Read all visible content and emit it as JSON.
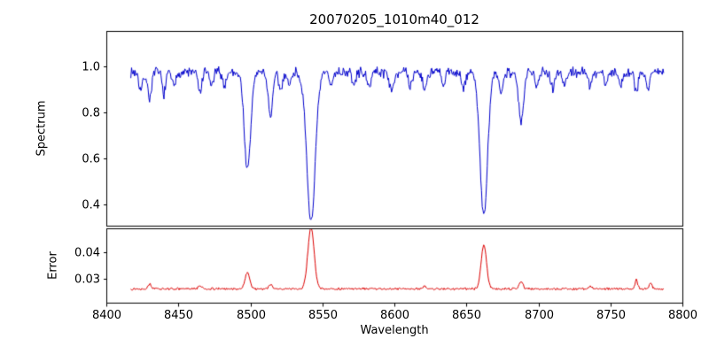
{
  "figure": {
    "background": "#ffffff",
    "frame_color": "#000000"
  },
  "chart_data": [
    {
      "type": "line",
      "panel": "spectrum",
      "title": "20070205_1010m40_012",
      "ylabel": "Spectrum",
      "xlabel": "",
      "color": "#0000cc",
      "xlim": [
        8400,
        8800
      ],
      "ylim": [
        0.3077,
        1.1538
      ],
      "yticks": [
        {
          "label": "1.0",
          "value": 1.0
        },
        {
          "label": "0.8",
          "value": 0.8
        },
        {
          "label": "0.6",
          "value": 0.6
        },
        {
          "label": "0.4",
          "value": 0.4
        }
      ],
      "x_range": [
        8417,
        8787
      ],
      "sample_step": 0.5,
      "noise_seed": 7,
      "baseline": 0.975,
      "noise_amplitude": 0.028,
      "absorption_lines": [
        {
          "center": 8424,
          "depth": 0.08,
          "width": 1.3
        },
        {
          "center": 8430,
          "depth": 0.11,
          "width": 1.4
        },
        {
          "center": 8440,
          "depth": 0.09,
          "width": 1.3
        },
        {
          "center": 8447,
          "depth": 0.07,
          "width": 1.2
        },
        {
          "center": 8465,
          "depth": 0.09,
          "width": 1.3
        },
        {
          "center": 8473,
          "depth": 0.06,
          "width": 1.2
        },
        {
          "center": 8482,
          "depth": 0.06,
          "width": 1.2
        },
        {
          "center": 8498.0,
          "depth": 0.43,
          "width": 2.2
        },
        {
          "center": 8514,
          "depth": 0.19,
          "width": 1.6
        },
        {
          "center": 8521,
          "depth": 0.08,
          "width": 1.3
        },
        {
          "center": 8527,
          "depth": 0.06,
          "width": 1.2
        },
        {
          "center": 8542.1,
          "depth": 0.645,
          "width": 3.0
        },
        {
          "center": 8556,
          "depth": 0.06,
          "width": 1.2
        },
        {
          "center": 8572,
          "depth": 0.06,
          "width": 1.2
        },
        {
          "center": 8582,
          "depth": 0.07,
          "width": 1.3
        },
        {
          "center": 8598,
          "depth": 0.09,
          "width": 1.3
        },
        {
          "center": 8611,
          "depth": 0.07,
          "width": 1.2
        },
        {
          "center": 8621,
          "depth": 0.08,
          "width": 1.3
        },
        {
          "center": 8634,
          "depth": 0.06,
          "width": 1.2
        },
        {
          "center": 8648,
          "depth": 0.08,
          "width": 1.3
        },
        {
          "center": 8662.1,
          "depth": 0.63,
          "width": 2.6
        },
        {
          "center": 8674,
          "depth": 0.09,
          "width": 1.3
        },
        {
          "center": 8688,
          "depth": 0.215,
          "width": 1.8
        },
        {
          "center": 8699,
          "depth": 0.05,
          "width": 1.2
        },
        {
          "center": 8710,
          "depth": 0.07,
          "width": 1.2
        },
        {
          "center": 8718,
          "depth": 0.06,
          "width": 1.2
        },
        {
          "center": 8736,
          "depth": 0.07,
          "width": 1.2
        },
        {
          "center": 8747,
          "depth": 0.05,
          "width": 1.2
        },
        {
          "center": 8757,
          "depth": 0.06,
          "width": 1.2
        },
        {
          "center": 8768,
          "depth": 0.08,
          "width": 1.3
        },
        {
          "center": 8776,
          "depth": 0.07,
          "width": 1.2
        }
      ]
    },
    {
      "type": "line",
      "panel": "error",
      "title": "",
      "ylabel": "Error",
      "xlabel": "Wavelength",
      "color": "#dd0000",
      "xlim": [
        8400,
        8800
      ],
      "ylim": [
        0.021,
        0.049
      ],
      "yticks": [
        {
          "label": "0.04",
          "value": 0.04
        },
        {
          "label": "0.03",
          "value": 0.03
        }
      ],
      "xticks": [
        8400,
        8450,
        8500,
        8550,
        8600,
        8650,
        8700,
        8750,
        8800
      ],
      "x_range": [
        8417,
        8787
      ],
      "sample_step": 0.5,
      "noise_seed": 13,
      "baseline": 0.0262,
      "noise_amplitude": 0.0005,
      "emission_peaks": [
        {
          "center": 8430,
          "height": 0.0018,
          "width": 1.2
        },
        {
          "center": 8465,
          "height": 0.0012,
          "width": 1.2
        },
        {
          "center": 8498.0,
          "height": 0.0062,
          "width": 1.6
        },
        {
          "center": 8514,
          "height": 0.0015,
          "width": 1.2
        },
        {
          "center": 8542.1,
          "height": 0.023,
          "width": 2.2
        },
        {
          "center": 8621,
          "height": 0.001,
          "width": 1.1
        },
        {
          "center": 8662.1,
          "height": 0.0165,
          "width": 1.9
        },
        {
          "center": 8688,
          "height": 0.0028,
          "width": 1.3
        },
        {
          "center": 8736,
          "height": 0.0012,
          "width": 1.0
        },
        {
          "center": 8768,
          "height": 0.0035,
          "width": 0.9
        },
        {
          "center": 8778,
          "height": 0.0022,
          "width": 0.9
        }
      ]
    }
  ]
}
